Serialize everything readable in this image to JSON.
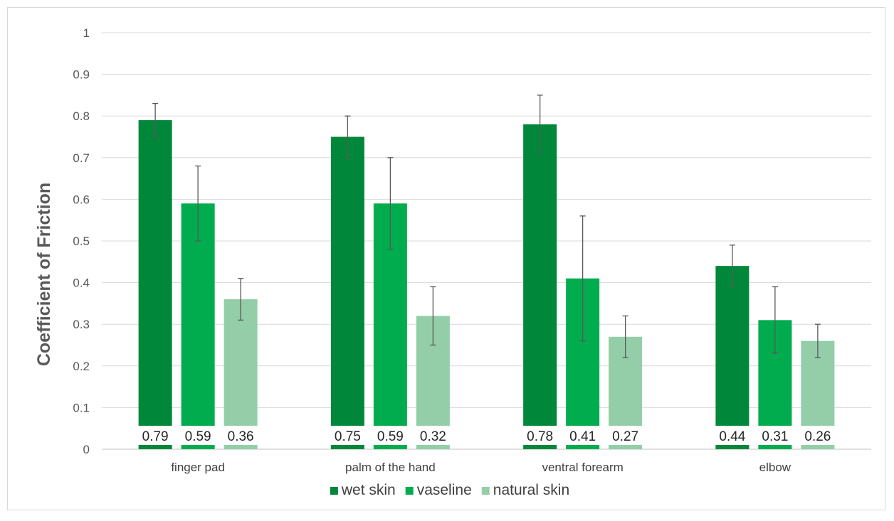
{
  "chart_data": {
    "type": "bar",
    "title": "",
    "xlabel": "",
    "ylabel": "Coefficient of Friction",
    "ylim": [
      0,
      1
    ],
    "yticks": [
      0,
      0.1,
      0.2,
      0.3,
      0.4,
      0.5,
      0.6,
      0.7,
      0.8,
      0.9,
      1
    ],
    "ytick_labels": [
      "0",
      "0.1",
      "0.2",
      "0.3",
      "0.4",
      "0.5",
      "0.6",
      "0.7",
      "0.8",
      "0.9",
      "1"
    ],
    "grid": true,
    "legend_position": "bottom",
    "categories": [
      "finger pad",
      "palm of the hand",
      "ventral forearm",
      "elbow"
    ],
    "series": [
      {
        "name": "wet skin",
        "color": "#00873a",
        "values": [
          0.79,
          0.75,
          0.78,
          0.44
        ],
        "labels": [
          "0.79",
          "0.75",
          "0.78",
          "0.44"
        ],
        "err_low": [
          0.75,
          0.7,
          0.71,
          0.39
        ],
        "err_high": [
          0.83,
          0.8,
          0.85,
          0.49
        ]
      },
      {
        "name": "vaseline",
        "color": "#00ac4e",
        "values": [
          0.59,
          0.59,
          0.41,
          0.31
        ],
        "labels": [
          "0.59",
          "0.59",
          "0.41",
          "0.31"
        ],
        "err_low": [
          0.5,
          0.48,
          0.26,
          0.23
        ],
        "err_high": [
          0.68,
          0.7,
          0.56,
          0.39
        ]
      },
      {
        "name": "natural skin",
        "color": "#93cea8",
        "values": [
          0.36,
          0.32,
          0.27,
          0.26
        ],
        "labels": [
          "0.36",
          "0.32",
          "0.27",
          "0.26"
        ],
        "err_low": [
          0.31,
          0.25,
          0.22,
          0.22
        ],
        "err_high": [
          0.41,
          0.39,
          0.32,
          0.3
        ]
      }
    ]
  }
}
